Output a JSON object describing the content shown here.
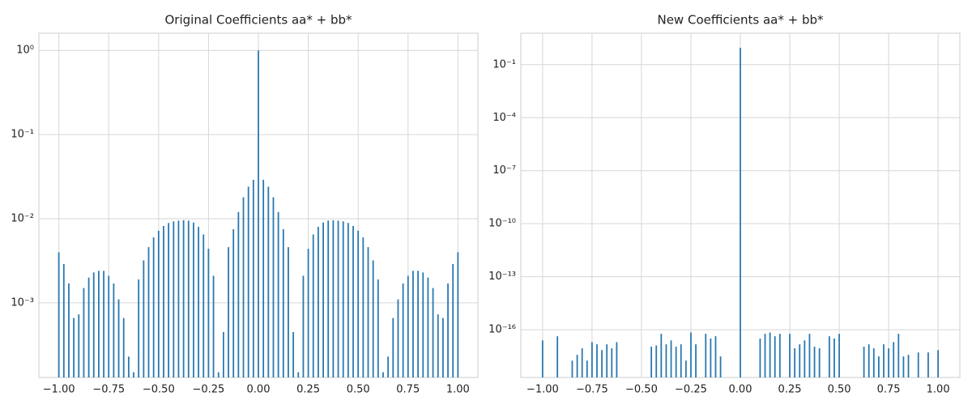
{
  "chart_data": [
    {
      "type": "stem",
      "title": "Original Coefficients aa* + bb*",
      "log_scale": true,
      "grid": true,
      "color": "#2a78b0",
      "xlim": [
        -1.1,
        1.1
      ],
      "ylim": [
        0.00013,
        1.6
      ],
      "xticks": [
        {
          "value": -1,
          "label": "−1.00"
        },
        {
          "value": -0.75,
          "label": "−0.75"
        },
        {
          "value": -0.5,
          "label": "−0.50"
        },
        {
          "value": -0.25,
          "label": "−0.25"
        },
        {
          "value": 0,
          "label": "0.00"
        },
        {
          "value": 0.25,
          "label": "0.25"
        },
        {
          "value": 0.5,
          "label": "0.50"
        },
        {
          "value": 0.75,
          "label": "0.75"
        },
        {
          "value": 1,
          "label": "1.00"
        }
      ],
      "yticks": [
        {
          "value": 0.001,
          "label": "10⁻³"
        },
        {
          "value": 0.01,
          "label": "10⁻²"
        },
        {
          "value": 0.1,
          "label": "10⁻¹"
        },
        {
          "value": 1,
          "label": "10⁰"
        }
      ],
      "x": [
        -1,
        -0.975,
        -0.95,
        -0.925,
        -0.9,
        -0.875,
        -0.85,
        -0.825,
        -0.8,
        -0.775,
        -0.75,
        -0.725,
        -0.7,
        -0.675,
        -0.65,
        -0.625,
        -0.6,
        -0.575,
        -0.55,
        -0.525,
        -0.5,
        -0.475,
        -0.45,
        -0.425,
        -0.4,
        -0.375,
        -0.35,
        -0.325,
        -0.3,
        -0.275,
        -0.25,
        -0.225,
        -0.2,
        -0.175,
        -0.15,
        -0.125,
        -0.1,
        -0.075,
        -0.05,
        -0.025,
        0,
        0.025,
        0.05,
        0.075,
        0.1,
        0.125,
        0.15,
        0.175,
        0.2,
        0.225,
        0.25,
        0.275,
        0.3,
        0.325,
        0.35,
        0.375,
        0.4,
        0.425,
        0.45,
        0.475,
        0.5,
        0.525,
        0.55,
        0.575,
        0.6,
        0.625,
        0.65,
        0.675,
        0.7,
        0.725,
        0.75,
        0.775,
        0.8,
        0.825,
        0.85,
        0.875,
        0.9,
        0.925,
        0.95,
        0.975,
        1
      ],
      "values": [
        0.004,
        0.0029,
        0.0017,
        0.00066,
        0.00073,
        0.0015,
        0.002,
        0.0023,
        0.0024,
        0.0024,
        0.0021,
        0.0017,
        0.0011,
        0.00066,
        0.00023,
        0.00015,
        0.0019,
        0.0032,
        0.0046,
        0.006,
        0.0072,
        0.0082,
        0.0089,
        0.0093,
        0.0095,
        0.0096,
        0.0095,
        0.009,
        0.008,
        0.0065,
        0.0044,
        0.0021,
        0.00015,
        0.00045,
        0.0046,
        0.0075,
        0.012,
        0.018,
        0.024,
        0.029,
        1.0,
        0.029,
        0.024,
        0.018,
        0.012,
        0.0075,
        0.0046,
        0.00045,
        0.00015,
        0.0021,
        0.0044,
        0.0065,
        0.008,
        0.009,
        0.0095,
        0.0096,
        0.0095,
        0.0093,
        0.0089,
        0.0082,
        0.0072,
        0.006,
        0.0046,
        0.0032,
        0.0019,
        0.00015,
        0.00023,
        0.00066,
        0.0011,
        0.0017,
        0.0021,
        0.0024,
        0.0024,
        0.0023,
        0.002,
        0.0015,
        0.00073,
        0.00066,
        0.0017,
        0.0029,
        0.004
      ]
    },
    {
      "type": "stem",
      "title": "New Coefficients aa* + bb*",
      "log_scale": true,
      "grid": true,
      "color": "#2a78b0",
      "xlim": [
        -1.11,
        1.11
      ],
      "ylim": [
        2e-19,
        6
      ],
      "xticks": [
        {
          "value": -1,
          "label": "−1.00"
        },
        {
          "value": -0.75,
          "label": "−0.75"
        },
        {
          "value": -0.5,
          "label": "−0.50"
        },
        {
          "value": -0.25,
          "label": "−0.25"
        },
        {
          "value": 0,
          "label": "0.00"
        },
        {
          "value": 0.25,
          "label": "0.25"
        },
        {
          "value": 0.5,
          "label": "0.50"
        },
        {
          "value": 0.75,
          "label": "0.75"
        },
        {
          "value": 1,
          "label": "1.00"
        }
      ],
      "yticks": [
        {
          "value": 1e-16,
          "label": "10⁻¹⁶"
        },
        {
          "value": 1e-13,
          "label": "10⁻¹³"
        },
        {
          "value": 1e-10,
          "label": "10⁻¹⁰"
        },
        {
          "value": 1e-07,
          "label": "10⁻⁷"
        },
        {
          "value": 0.0001,
          "label": "10⁻⁴"
        },
        {
          "value": 0.1,
          "label": "10⁻¹"
        }
      ],
      "x": [
        -1,
        -0.925,
        -0.85,
        -0.825,
        -0.8,
        -0.775,
        -0.75,
        -0.725,
        -0.7,
        -0.675,
        -0.65,
        -0.625,
        -0.45,
        -0.425,
        -0.4,
        -0.375,
        -0.35,
        -0.325,
        -0.3,
        -0.275,
        -0.25,
        -0.225,
        -0.175,
        -0.15,
        -0.125,
        -0.1,
        0,
        0.1,
        0.125,
        0.15,
        0.175,
        0.2,
        0.25,
        0.275,
        0.3,
        0.325,
        0.35,
        0.375,
        0.4,
        0.45,
        0.475,
        0.5,
        0.625,
        0.65,
        0.675,
        0.7,
        0.725,
        0.75,
        0.775,
        0.8,
        0.825,
        0.85,
        0.9,
        0.95,
        1
      ],
      "values": [
        2.5e-17,
        4.3e-17,
        1.8e-18,
        3.8e-18,
        8.9e-18,
        1.8e-18,
        2e-17,
        1.5e-17,
        7.1e-18,
        1.5e-17,
        8.9e-18,
        2e-17,
        1.1e-17,
        1.3e-17,
        5.9e-17,
        1.5e-17,
        2.5e-17,
        1.1e-17,
        1.5e-17,
        1.8e-18,
        7e-17,
        1.5e-17,
        5.9e-17,
        3.2e-17,
        4.3e-17,
        3.1e-18,
        0.9,
        3.2e-17,
        5.9e-17,
        7e-17,
        4.3e-17,
        5.9e-17,
        5.9e-17,
        8.9e-18,
        1.5e-17,
        2.5e-17,
        5.9e-17,
        1.1e-17,
        8.9e-18,
        4.3e-17,
        3.2e-17,
        5.9e-17,
        1.1e-17,
        1.5e-17,
        8.9e-18,
        3.1e-18,
        1.5e-17,
        8.9e-18,
        2e-17,
        5.9e-17,
        3.1e-18,
        3.8e-18,
        5.2e-18,
        5.2e-18,
        7.1e-18
      ]
    }
  ]
}
